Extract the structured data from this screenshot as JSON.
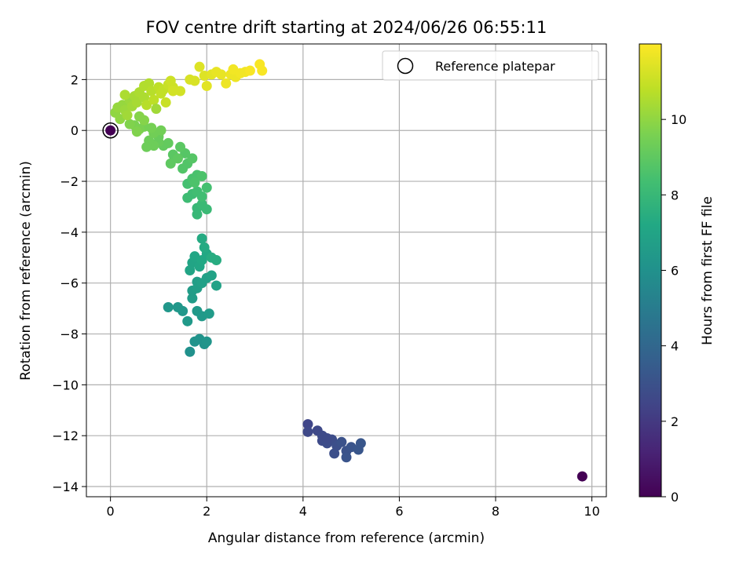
{
  "chart_data": {
    "type": "scatter",
    "title": "FOV centre drift starting at 2024/06/26 06:55:11",
    "xlabel": "Angular distance from reference (arcmin)",
    "ylabel": "Rotation from reference (arcmin)",
    "xlim": [
      -0.5,
      10.3
    ],
    "ylim": [
      -14.4,
      3.4
    ],
    "xticks": [
      0,
      2,
      4,
      6,
      8,
      10
    ],
    "yticks": [
      -14,
      -12,
      -10,
      -8,
      -6,
      -4,
      -2,
      0,
      2
    ],
    "xtick_labels": [
      "0",
      "2",
      "4",
      "6",
      "8",
      "10"
    ],
    "ytick_labels": [
      "−14",
      "−12",
      "−10",
      "−8",
      "−6",
      "−4",
      "−2",
      "0",
      "2"
    ],
    "grid": true,
    "legend": {
      "position": "top-right",
      "entries": [
        "Reference platepar"
      ]
    },
    "reference_point": {
      "x": 0,
      "y": 0,
      "label": "Reference platepar"
    },
    "colorbar": {
      "label": "Hours from first FF file",
      "min": 0,
      "max": 12,
      "ticks": [
        0,
        2,
        4,
        6,
        8,
        10
      ],
      "tick_labels": [
        "0",
        "2",
        "4",
        "6",
        "8",
        "10"
      ],
      "colormap": "viridis"
    },
    "colors": {
      "viridis": [
        "#440154",
        "#482475",
        "#414487",
        "#355f8d",
        "#2a788e",
        "#21918c",
        "#22a884",
        "#44bf70",
        "#7ad151",
        "#bddf26",
        "#fde725"
      ]
    },
    "points": [
      {
        "x": 9.8,
        "y": -13.6,
        "t": 0.0
      },
      {
        "x": 4.1,
        "y": -11.55,
        "t": 2.5
      },
      {
        "x": 4.1,
        "y": -11.85,
        "t": 2.6
      },
      {
        "x": 4.3,
        "y": -11.8,
        "t": 2.6
      },
      {
        "x": 4.4,
        "y": -12.0,
        "t": 2.7
      },
      {
        "x": 4.4,
        "y": -12.2,
        "t": 2.7
      },
      {
        "x": 4.5,
        "y": -12.3,
        "t": 2.8
      },
      {
        "x": 4.6,
        "y": -12.15,
        "t": 2.8
      },
      {
        "x": 4.7,
        "y": -12.4,
        "t": 2.9
      },
      {
        "x": 4.65,
        "y": -12.7,
        "t": 2.9
      },
      {
        "x": 4.8,
        "y": -12.25,
        "t": 3.0
      },
      {
        "x": 4.9,
        "y": -12.6,
        "t": 3.0
      },
      {
        "x": 4.9,
        "y": -12.85,
        "t": 3.1
      },
      {
        "x": 5.0,
        "y": -12.45,
        "t": 3.1
      },
      {
        "x": 5.15,
        "y": -12.55,
        "t": 3.2
      },
      {
        "x": 5.2,
        "y": -12.3,
        "t": 3.2
      },
      {
        "x": 4.5,
        "y": -12.1,
        "t": 2.7
      },
      {
        "x": 1.65,
        "y": -8.7,
        "t": 6.0
      },
      {
        "x": 1.75,
        "y": -8.3,
        "t": 6.1
      },
      {
        "x": 1.85,
        "y": -8.2,
        "t": 6.1
      },
      {
        "x": 1.95,
        "y": -8.4,
        "t": 6.1
      },
      {
        "x": 2.0,
        "y": -8.3,
        "t": 6.2
      },
      {
        "x": 1.2,
        "y": -6.95,
        "t": 6.3
      },
      {
        "x": 1.4,
        "y": -6.95,
        "t": 6.3
      },
      {
        "x": 1.5,
        "y": -7.1,
        "t": 6.3
      },
      {
        "x": 1.6,
        "y": -7.5,
        "t": 6.4
      },
      {
        "x": 1.8,
        "y": -7.1,
        "t": 6.4
      },
      {
        "x": 1.9,
        "y": -7.3,
        "t": 6.4
      },
      {
        "x": 2.05,
        "y": -7.2,
        "t": 6.5
      },
      {
        "x": 1.7,
        "y": -6.6,
        "t": 6.6
      },
      {
        "x": 1.7,
        "y": -6.3,
        "t": 6.6
      },
      {
        "x": 1.8,
        "y": -6.2,
        "t": 6.7
      },
      {
        "x": 1.8,
        "y": -5.95,
        "t": 6.7
      },
      {
        "x": 1.9,
        "y": -6.0,
        "t": 6.8
      },
      {
        "x": 2.0,
        "y": -5.8,
        "t": 6.8
      },
      {
        "x": 2.1,
        "y": -5.7,
        "t": 6.9
      },
      {
        "x": 2.2,
        "y": -6.1,
        "t": 6.9
      },
      {
        "x": 1.65,
        "y": -5.5,
        "t": 7.0
      },
      {
        "x": 1.7,
        "y": -5.2,
        "t": 7.0
      },
      {
        "x": 1.75,
        "y": -4.95,
        "t": 7.1
      },
      {
        "x": 1.85,
        "y": -5.35,
        "t": 7.1
      },
      {
        "x": 1.9,
        "y": -5.1,
        "t": 7.2
      },
      {
        "x": 2.0,
        "y": -4.85,
        "t": 7.2
      },
      {
        "x": 1.95,
        "y": -4.6,
        "t": 7.3
      },
      {
        "x": 1.9,
        "y": -4.25,
        "t": 7.3
      },
      {
        "x": 2.1,
        "y": -5.0,
        "t": 7.4
      },
      {
        "x": 2.2,
        "y": -5.1,
        "t": 7.4
      },
      {
        "x": 1.8,
        "y": -3.3,
        "t": 8.0
      },
      {
        "x": 1.8,
        "y": -3.05,
        "t": 8.0
      },
      {
        "x": 1.9,
        "y": -2.9,
        "t": 8.1
      },
      {
        "x": 2.0,
        "y": -3.1,
        "t": 8.1
      },
      {
        "x": 1.6,
        "y": -2.65,
        "t": 8.2
      },
      {
        "x": 1.7,
        "y": -2.5,
        "t": 8.2
      },
      {
        "x": 1.8,
        "y": -2.4,
        "t": 8.3
      },
      {
        "x": 1.9,
        "y": -2.6,
        "t": 8.3
      },
      {
        "x": 2.0,
        "y": -2.25,
        "t": 8.4
      },
      {
        "x": 1.6,
        "y": -2.1,
        "t": 8.4
      },
      {
        "x": 1.7,
        "y": -1.9,
        "t": 8.5
      },
      {
        "x": 1.8,
        "y": -1.75,
        "t": 8.5
      },
      {
        "x": 1.9,
        "y": -1.8,
        "t": 8.6
      },
      {
        "x": 1.75,
        "y": -2.05,
        "t": 8.6
      },
      {
        "x": 1.5,
        "y": -1.5,
        "t": 8.7
      },
      {
        "x": 1.6,
        "y": -1.3,
        "t": 8.7
      },
      {
        "x": 1.7,
        "y": -1.1,
        "t": 8.8
      },
      {
        "x": 1.55,
        "y": -0.9,
        "t": 8.8
      },
      {
        "x": 1.45,
        "y": -0.65,
        "t": 8.9
      },
      {
        "x": 1.3,
        "y": -0.95,
        "t": 8.9
      },
      {
        "x": 1.25,
        "y": -1.3,
        "t": 9.0
      },
      {
        "x": 1.4,
        "y": -1.1,
        "t": 9.0
      },
      {
        "x": 1.1,
        "y": -0.6,
        "t": 9.1
      },
      {
        "x": 1.2,
        "y": -0.5,
        "t": 9.1
      },
      {
        "x": 1.0,
        "y": -0.45,
        "t": 9.2
      },
      {
        "x": 1.0,
        "y": -0.25,
        "t": 9.2
      },
      {
        "x": 0.9,
        "y": -0.6,
        "t": 9.3
      },
      {
        "x": 0.8,
        "y": -0.4,
        "t": 9.3
      },
      {
        "x": 0.75,
        "y": -0.65,
        "t": 9.3
      },
      {
        "x": 0.9,
        "y": -0.1,
        "t": 9.4
      },
      {
        "x": 1.05,
        "y": 0.0,
        "t": 9.4
      },
      {
        "x": 0.85,
        "y": 0.1,
        "t": 9.5
      },
      {
        "x": 0.7,
        "y": 0.15,
        "t": 9.5
      },
      {
        "x": 0.6,
        "y": 0.05,
        "t": 9.6
      },
      {
        "x": 0.5,
        "y": 0.2,
        "t": 9.6
      },
      {
        "x": 0.55,
        "y": -0.05,
        "t": 9.7
      },
      {
        "x": 0.4,
        "y": 0.25,
        "t": 9.7
      },
      {
        "x": 0.7,
        "y": 0.4,
        "t": 9.8
      },
      {
        "x": 0.6,
        "y": 0.55,
        "t": 9.8
      },
      {
        "x": 0.2,
        "y": 0.45,
        "t": 10.0
      },
      {
        "x": 0.1,
        "y": 0.7,
        "t": 10.0
      },
      {
        "x": 0.15,
        "y": 0.9,
        "t": 10.1
      },
      {
        "x": 0.25,
        "y": 1.0,
        "t": 10.1
      },
      {
        "x": 0.3,
        "y": 0.8,
        "t": 10.2
      },
      {
        "x": 0.4,
        "y": 1.2,
        "t": 10.2
      },
      {
        "x": 0.35,
        "y": 0.6,
        "t": 10.3
      },
      {
        "x": 0.45,
        "y": 0.95,
        "t": 10.3
      },
      {
        "x": 0.5,
        "y": 1.35,
        "t": 10.4
      },
      {
        "x": 0.55,
        "y": 1.1,
        "t": 10.4
      },
      {
        "x": 0.6,
        "y": 1.5,
        "t": 10.5
      },
      {
        "x": 0.7,
        "y": 1.3,
        "t": 10.5
      },
      {
        "x": 0.7,
        "y": 1.75,
        "t": 10.6
      },
      {
        "x": 0.8,
        "y": 1.85,
        "t": 10.6
      },
      {
        "x": 0.85,
        "y": 1.55,
        "t": 10.7
      },
      {
        "x": 0.75,
        "y": 1.0,
        "t": 10.7
      },
      {
        "x": 0.9,
        "y": 1.2,
        "t": 10.8
      },
      {
        "x": 1.0,
        "y": 1.7,
        "t": 10.8
      },
      {
        "x": 1.05,
        "y": 1.45,
        "t": 10.9
      },
      {
        "x": 1.1,
        "y": 1.6,
        "t": 10.9
      },
      {
        "x": 1.15,
        "y": 1.1,
        "t": 11.0
      },
      {
        "x": 1.2,
        "y": 1.8,
        "t": 11.0
      },
      {
        "x": 1.3,
        "y": 1.7,
        "t": 11.1
      },
      {
        "x": 1.25,
        "y": 1.95,
        "t": 11.1
      },
      {
        "x": 1.3,
        "y": 1.55,
        "t": 11.2
      },
      {
        "x": 1.45,
        "y": 1.55,
        "t": 11.2
      },
      {
        "x": 0.95,
        "y": 0.85,
        "t": 10.3
      },
      {
        "x": 0.3,
        "y": 1.4,
        "t": 10.5
      },
      {
        "x": 1.65,
        "y": 2.0,
        "t": 11.3
      },
      {
        "x": 1.75,
        "y": 1.95,
        "t": 11.3
      },
      {
        "x": 1.85,
        "y": 2.5,
        "t": 11.4
      },
      {
        "x": 1.95,
        "y": 2.15,
        "t": 11.4
      },
      {
        "x": 2.0,
        "y": 1.75,
        "t": 11.5
      },
      {
        "x": 2.1,
        "y": 2.2,
        "t": 11.5
      },
      {
        "x": 2.2,
        "y": 2.3,
        "t": 11.6
      },
      {
        "x": 2.3,
        "y": 2.2,
        "t": 11.6
      },
      {
        "x": 2.4,
        "y": 1.85,
        "t": 11.7
      },
      {
        "x": 2.5,
        "y": 2.2,
        "t": 11.7
      },
      {
        "x": 2.6,
        "y": 2.1,
        "t": 11.7
      },
      {
        "x": 2.55,
        "y": 2.4,
        "t": 11.8
      },
      {
        "x": 2.7,
        "y": 2.25,
        "t": 11.8
      },
      {
        "x": 2.8,
        "y": 2.3,
        "t": 11.8
      },
      {
        "x": 2.9,
        "y": 2.35,
        "t": 11.9
      },
      {
        "x": 3.1,
        "y": 2.6,
        "t": 11.9
      },
      {
        "x": 3.15,
        "y": 2.35,
        "t": 11.9
      }
    ]
  }
}
